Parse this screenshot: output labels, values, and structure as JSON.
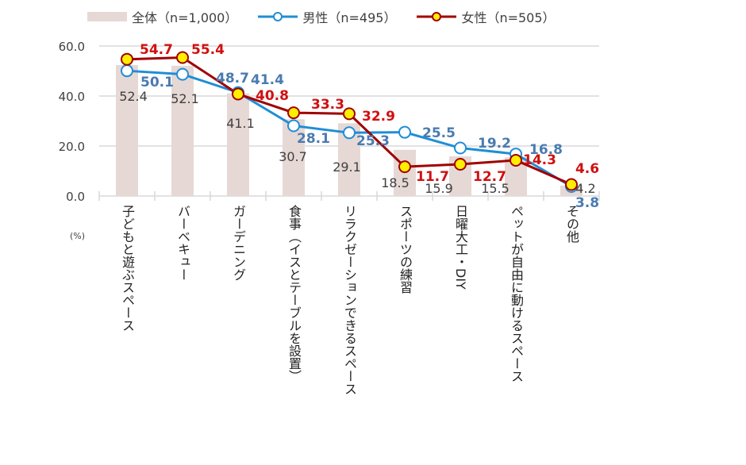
{
  "chart_data": {
    "type": "bar+line",
    "categories": [
      "子どもと遊ぶスペース",
      "バーベキュー",
      "ガーデニング",
      "食事（イスとテーブルを設置）",
      "リラクゼーションできるスペース",
      "スポーツの練習",
      "日曜大工・DIY",
      "ペットが自由に動けるスペース",
      "その他"
    ],
    "series": [
      {
        "name": "全体（n=1,000）",
        "type": "bar",
        "color": "#e6d8d5",
        "values": [
          52.4,
          52.1,
          41.1,
          30.7,
          29.1,
          18.5,
          15.9,
          15.5,
          4.2
        ]
      },
      {
        "name": "男性（n=495）",
        "type": "line",
        "color": "#1f8ed6",
        "label_color": "#4a7bb0",
        "values": [
          50.1,
          48.7,
          41.4,
          28.1,
          25.3,
          25.5,
          19.2,
          16.8,
          3.8
        ]
      },
      {
        "name": "女性（n=505）",
        "type": "line",
        "color": "#a00000",
        "label_color": "#d01010",
        "marker_fill": "#ffee00",
        "values": [
          54.7,
          55.4,
          40.8,
          33.3,
          32.9,
          11.7,
          12.7,
          14.3,
          4.6
        ]
      }
    ],
    "yticks": [
      "0.0",
      "20.0",
      "40.0",
      "60.0"
    ],
    "ylim": [
      0,
      60
    ],
    "unit": "(%)",
    "grid": true,
    "legend": "top"
  }
}
